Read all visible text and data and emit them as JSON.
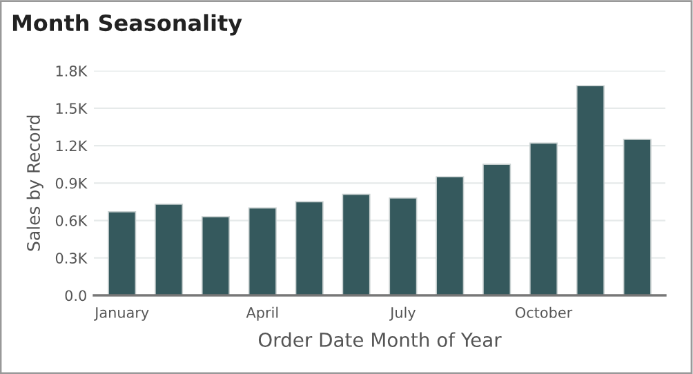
{
  "chart_data": {
    "type": "bar",
    "title": "Month Seasonality",
    "xlabel": "Order Date Month of Year",
    "ylabel": "Sales by Record",
    "categories": [
      "January",
      null,
      null,
      "April",
      null,
      null,
      "July",
      null,
      null,
      "October",
      null,
      null
    ],
    "values": [
      0.67,
      0.73,
      0.63,
      0.7,
      0.75,
      0.81,
      0.78,
      0.95,
      1.05,
      1.22,
      1.68,
      1.25
    ],
    "color": "#35595d",
    "ylim": [
      0,
      1.8
    ],
    "yticks": [
      {
        "value": 0,
        "label": "0.0"
      },
      {
        "value": 0.3,
        "label": "0.3K"
      },
      {
        "value": 0.6,
        "label": "0.6K"
      },
      {
        "value": 0.9,
        "label": "0.9K"
      },
      {
        "value": 1.2,
        "label": "1.2K"
      },
      {
        "value": 1.5,
        "label": "1.5K"
      },
      {
        "value": 1.8,
        "label": "1.8K"
      }
    ],
    "grid": "y",
    "legend": false
  }
}
